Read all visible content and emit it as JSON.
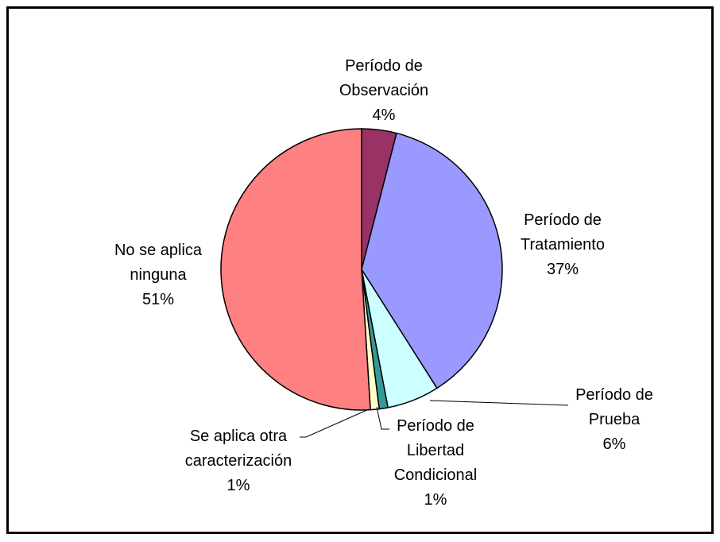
{
  "chart_data": {
    "type": "pie",
    "categories": [
      "Período de Observación",
      "Período de Tratamiento",
      "Período de Prueba",
      "Período de Libertad Condicional",
      "Se aplica otra caracterización",
      "No se aplica ninguna"
    ],
    "values": [
      4,
      37,
      6,
      1,
      1,
      51
    ],
    "value_labels": [
      "4%",
      "37%",
      "6%",
      "1%",
      "1%",
      "51%"
    ],
    "colors": [
      "#993366",
      "#9999ff",
      "#ccffff",
      "#339999",
      "#ffffcc",
      "#ff8080"
    ]
  }
}
